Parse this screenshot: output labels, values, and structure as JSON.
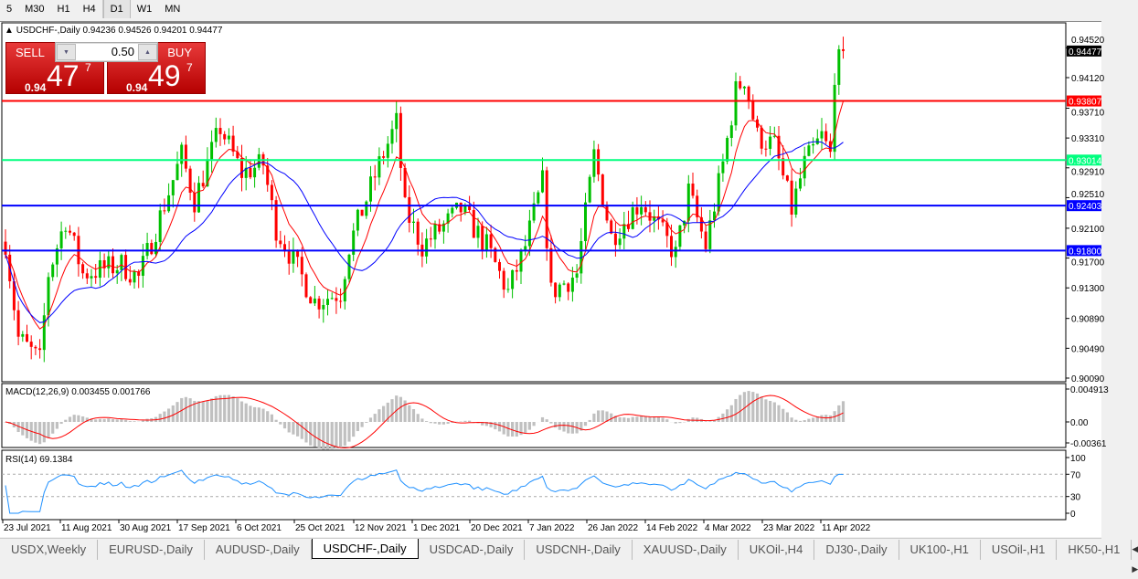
{
  "timeframes": [
    "5",
    "M30",
    "H1",
    "H4",
    "D1",
    "W1",
    "MN"
  ],
  "active_timeframe": "D1",
  "chart": {
    "title": "USDCHF-,Daily",
    "ohlc": "0.94236 0.94526 0.94201 0.94477"
  },
  "trade_panel": {
    "sell_label": "SELL",
    "buy_label": "BUY",
    "lot": "0.50",
    "sell": {
      "small": "0.94",
      "big": "47",
      "tiny": "7"
    },
    "buy": {
      "small": "0.94",
      "big": "49",
      "tiny": "7"
    }
  },
  "macd_label": "MACD(12,26,9) 0.003455 0.001766",
  "rsi_label": "RSI(14) 69.1384",
  "colors": {
    "bull": "#00c000",
    "bear": "#ff0000",
    "fast_ma": "#ff0000",
    "slow_ma": "#0000ff",
    "macd_hist": "#c0c0c0",
    "macd_signal": "#ff0000",
    "rsi": "#1e90ff"
  },
  "chart_data": {
    "type": "candlestick",
    "price_ticks": [
      "0.94520",
      "0.94120",
      "0.93710",
      "0.93310",
      "0.92910",
      "0.92510",
      "0.92100",
      "0.91700",
      "0.91300",
      "0.90890",
      "0.90490",
      "0.90090"
    ],
    "price_range": [
      0.9009,
      0.9462
    ],
    "current_price": "0.94477",
    "levels": [
      {
        "price": "0.93807",
        "color": "#ff0000"
      },
      {
        "price": "0.93014",
        "color": "#00ff7f"
      },
      {
        "price": "0.92403",
        "color": "#0000ff"
      },
      {
        "price": "0.91800",
        "color": "#0000ff"
      }
    ],
    "close_waypoints": [
      [
        0,
        0.9192
      ],
      [
        3,
        0.9063
      ],
      [
        8,
        0.9032
      ],
      [
        10,
        0.9149
      ],
      [
        14,
        0.9222
      ],
      [
        18,
        0.9149
      ],
      [
        27,
        0.9161
      ],
      [
        31,
        0.9143
      ],
      [
        41,
        0.9308
      ],
      [
        44,
        0.9247
      ],
      [
        50,
        0.9345
      ],
      [
        55,
        0.9284
      ],
      [
        60,
        0.9296
      ],
      [
        63,
        0.921
      ],
      [
        72,
        0.9112
      ],
      [
        78,
        0.9124
      ],
      [
        80,
        0.9186
      ],
      [
        87,
        0.9296
      ],
      [
        91,
        0.9351
      ],
      [
        93,
        0.9235
      ],
      [
        97,
        0.9186
      ],
      [
        106,
        0.9235
      ],
      [
        112,
        0.9186
      ],
      [
        117,
        0.9124
      ],
      [
        121,
        0.9186
      ],
      [
        125,
        0.9272
      ],
      [
        127,
        0.9124
      ],
      [
        133,
        0.9149
      ],
      [
        137,
        0.9308
      ],
      [
        141,
        0.9198
      ],
      [
        148,
        0.9247
      ],
      [
        156,
        0.9174
      ],
      [
        159,
        0.9259
      ],
      [
        163,
        0.9186
      ],
      [
        167,
        0.9296
      ],
      [
        170,
        0.9394
      ],
      [
        172,
        0.9412
      ],
      [
        175,
        0.9333
      ],
      [
        179,
        0.9321
      ],
      [
        183,
        0.9235
      ],
      [
        186,
        0.9296
      ],
      [
        190,
        0.9333
      ],
      [
        192,
        0.9308
      ],
      [
        193,
        0.9419
      ],
      [
        195,
        0.94477
      ]
    ],
    "date_ticks": [
      "23 Jul 2021",
      "11 Aug 2021",
      "30 Aug 2021",
      "17 Sep 2021",
      "6 Oct 2021",
      "25 Oct 2021",
      "12 Nov 2021",
      "1 Dec 2021",
      "20 Dec 2021",
      "7 Jan 2022",
      "26 Jan 2022",
      "14 Feb 2022",
      "4 Mar 2022",
      "23 Mar 2022",
      "11 Apr 2022"
    ],
    "macd_ticks": [
      "0.004913",
      "0.00",
      "-0.00361"
    ],
    "macd_range": [
      -0.00361,
      0.004913
    ],
    "rsi_ticks": [
      "100",
      "70",
      "30",
      "0"
    ],
    "rsi_levels": [
      30,
      70
    ]
  },
  "tabs": [
    "USDX,Weekly",
    "EURUSD-,Daily",
    "AUDUSD-,Daily",
    "USDCHF-,Daily",
    "USDCAD-,Daily",
    "USDCNH-,Daily",
    "XAUUSD-,Daily",
    "UKOil-,H4",
    "DJ30-,Daily",
    "UK100-,H1",
    "USOil-,H1",
    "HK50-,H1"
  ],
  "active_tab": "USDCHF-,Daily"
}
